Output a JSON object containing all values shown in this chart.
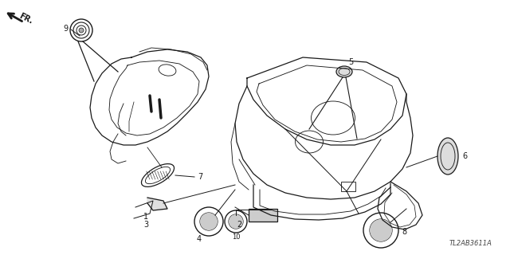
{
  "part_code": "TL2AB3611A",
  "background_color": "#ffffff",
  "line_color": "#1a1a1a",
  "figsize": [
    6.4,
    3.2
  ],
  "dpi": 100
}
